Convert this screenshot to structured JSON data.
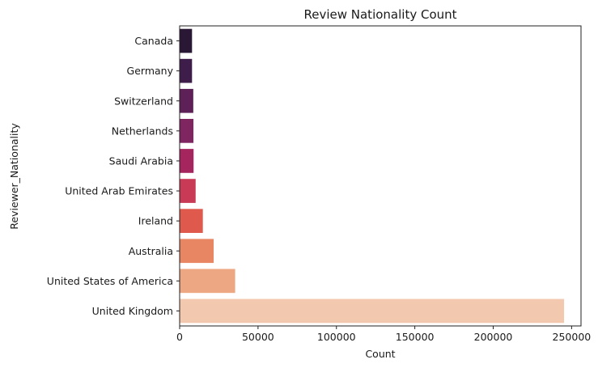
{
  "chart_data": {
    "type": "bar",
    "orientation": "horizontal",
    "title": "Review Nationality Count",
    "xlabel": "Count",
    "ylabel": "Reviewer_Nationality",
    "categories": [
      "Canada",
      "Germany",
      "Switzerland",
      "Netherlands",
      "Saudi Arabia",
      "United Arab Emirates",
      "Ireland",
      "Australia",
      "United States of America",
      "United Kingdom"
    ],
    "values": [
      7900,
      7900,
      8700,
      8800,
      8900,
      10200,
      14800,
      21700,
      35400,
      245200
    ],
    "colors": [
      "#2a1735",
      "#3f1d4a",
      "#5d2157",
      "#7f2560",
      "#a5265f",
      "#c93a56",
      "#df5a4d",
      "#e88563",
      "#eda883",
      "#f2c8ae"
    ],
    "xlim": [
      0,
      256000
    ],
    "xticks": [
      0,
      50000,
      100000,
      150000,
      200000,
      250000
    ],
    "xtick_labels": [
      "0",
      "50000",
      "100000",
      "150000",
      "200000",
      "250000"
    ],
    "grid": false,
    "legend": "none"
  }
}
